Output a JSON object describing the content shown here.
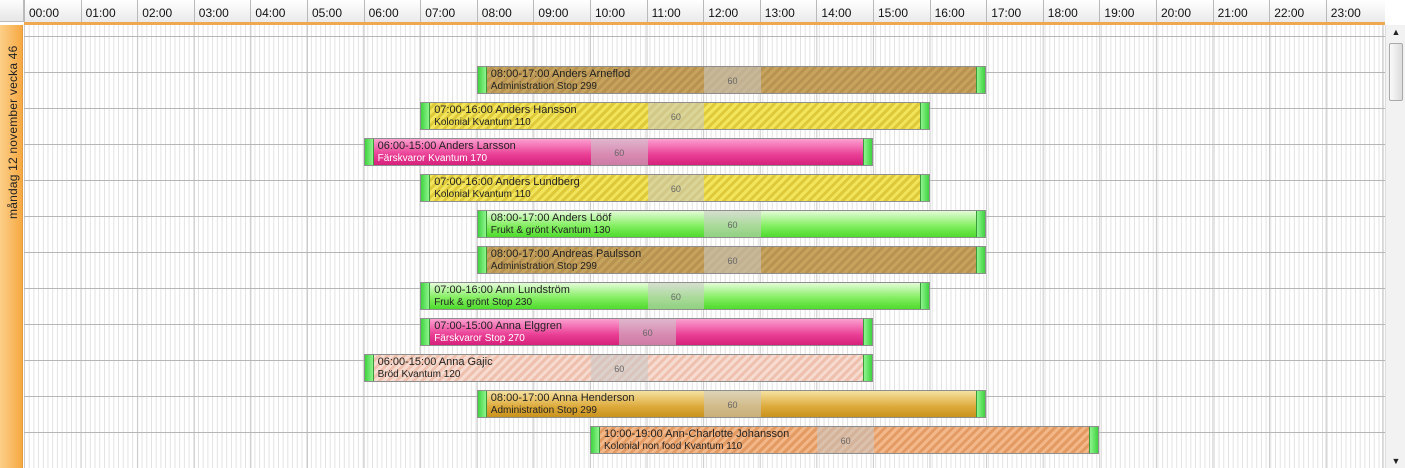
{
  "timeline": {
    "hours": [
      "00:00",
      "01:00",
      "02:00",
      "03:00",
      "04:00",
      "05:00",
      "06:00",
      "07:00",
      "08:00",
      "09:00",
      "10:00",
      "11:00",
      "12:00",
      "13:00",
      "14:00",
      "15:00",
      "16:00",
      "17:00",
      "18:00",
      "19:00",
      "20:00",
      "21:00",
      "22:00",
      "23:00"
    ]
  },
  "day_label": "måndag 12 november   vecka 46",
  "shifts": [
    {
      "line1": "08:00-17:00 Anders Arneflod",
      "line2": "Administration Stop 299",
      "break": "60",
      "start": 8,
      "end": 17,
      "break_start": 12,
      "break_end": 13,
      "style": "st-admin"
    },
    {
      "line1": "07:00-16:00 Anders Hansson",
      "line2": "Kolonial Kvantum 110",
      "break": "60",
      "start": 7,
      "end": 16,
      "break_start": 11,
      "break_end": 12,
      "style": "st-kol"
    },
    {
      "line1": "06:00-15:00 Anders Larsson",
      "line2": "Färskvaror Kvantum 170",
      "break": "60",
      "start": 6,
      "end": 15,
      "break_start": 10,
      "break_end": 11,
      "style": "st-fresh"
    },
    {
      "line1": "07:00-16:00 Anders Lundberg",
      "line2": "Kolonial Kvantum 110",
      "break": "60",
      "start": 7,
      "end": 16,
      "break_start": 11,
      "break_end": 12,
      "style": "st-kol"
    },
    {
      "line1": "08:00-17:00 Anders Lööf",
      "line2": "Frukt & grönt Kvantum 130",
      "break": "60",
      "start": 8,
      "end": 17,
      "break_start": 12,
      "break_end": 13,
      "style": "st-frukt"
    },
    {
      "line1": "08:00-17:00 Andreas Paulsson",
      "line2": "Administration Stop 299",
      "break": "60",
      "start": 8,
      "end": 17,
      "break_start": 12,
      "break_end": 13,
      "style": "st-admin"
    },
    {
      "line1": "07:00-16:00 Ann Lundström",
      "line2": "Fruk & grönt Stop 230",
      "break": "60",
      "start": 7,
      "end": 16,
      "break_start": 11,
      "break_end": 12,
      "style": "st-frukt"
    },
    {
      "line1": "07:00-15:00 Anna Elggren",
      "line2": "Färskvaror Stop 270",
      "break": "60",
      "start": 7,
      "end": 15,
      "break_start": 10.5,
      "break_end": 11.5,
      "style": "st-fresh"
    },
    {
      "line1": "06:00-15:00 Anna Gajic",
      "line2": "Bröd Kvantum 120",
      "break": "60",
      "start": 6,
      "end": 15,
      "break_start": 10,
      "break_end": 11,
      "style": "st-brod"
    },
    {
      "line1": "08:00-17:00 Anna Henderson",
      "line2": "Administration Stop 299",
      "break": "60",
      "start": 8,
      "end": 17,
      "break_start": 12,
      "break_end": 13,
      "style": "st-adm2"
    },
    {
      "line1": "10:00-19:00 Ann-Charlotte Johansson",
      "line2": "Kolonial non food Kvantum 110",
      "break": "60",
      "start": 10,
      "end": 19,
      "break_start": 14,
      "break_end": 15,
      "style": "st-nonfood"
    }
  ],
  "scrollbar": {
    "up_icon": "▲",
    "down_icon": "▼"
  }
}
